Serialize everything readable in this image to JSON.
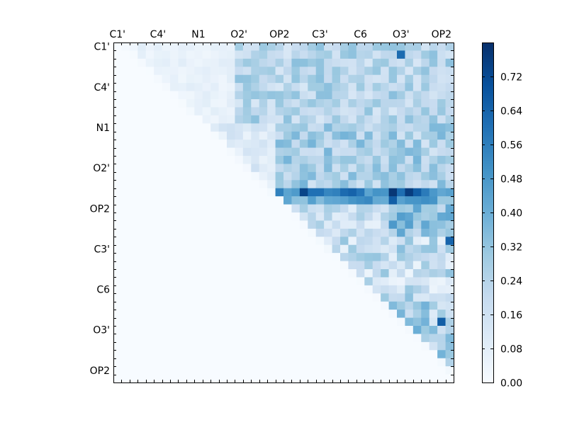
{
  "chart_data": {
    "type": "heatmap",
    "title": "",
    "xlabel": "",
    "ylabel": "",
    "n": 42,
    "tick_labels": [
      "C1'",
      "C4'",
      "N1",
      "O2'",
      "OP2",
      "C3'",
      "C6",
      "O3'",
      "OP2"
    ],
    "y_tick_labels": [
      "C1'",
      "C4'",
      "N1",
      "O2'",
      "OP2",
      "C3'",
      "C6",
      "O3'",
      "OP2"
    ],
    "tick_positions": [
      0,
      5,
      10,
      15,
      20,
      25,
      30,
      35,
      40
    ],
    "colorbar": {
      "colormap": "Blues",
      "range": [
        0.0,
        0.8
      ],
      "ticks": [
        "0.00",
        "0.08",
        "0.16",
        "0.24",
        "0.32",
        "0.40",
        "0.48",
        "0.56",
        "0.64",
        "0.72"
      ],
      "tick_values": [
        0.0,
        0.08,
        0.16,
        0.24,
        0.32,
        0.4,
        0.48,
        0.56,
        0.64,
        0.72
      ]
    },
    "structure": "upper-triangular correlation matrix; lower triangle ~0",
    "highlights": [
      {
        "row": 18,
        "col": 23,
        "value": 0.74
      },
      {
        "row": 18,
        "col": 34,
        "value": 0.78
      },
      {
        "row": 18,
        "col": 36,
        "value": 0.76
      },
      {
        "row": 18,
        "col": 28,
        "value": 0.62
      },
      {
        "row": 19,
        "col": 34,
        "value": 0.66
      },
      {
        "row": 1,
        "col": 35,
        "value": 0.62
      },
      {
        "row": 24,
        "col": 41,
        "value": 0.64
      },
      {
        "row": 34,
        "col": 40,
        "value": 0.66
      }
    ]
  }
}
